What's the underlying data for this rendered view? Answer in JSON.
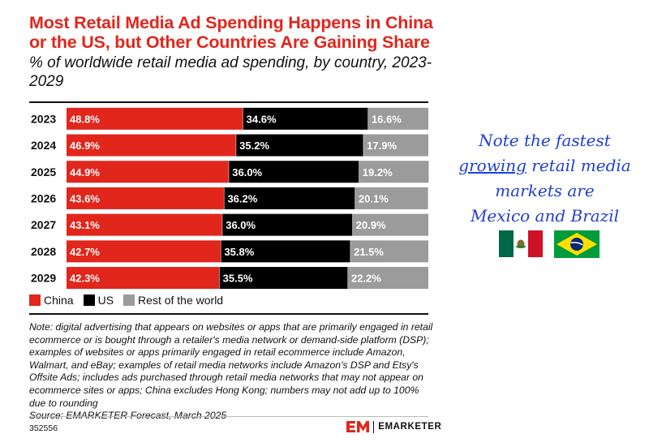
{
  "chart_data": {
    "type": "bar",
    "orientation": "horizontal",
    "stacked": true,
    "title": "Most Retail Media Ad Spending Happens in China or the US, but Other Countries Are Gaining Share",
    "subtitle": "% of worldwide retail media ad spending, by country, 2023-2029",
    "categories": [
      "2023",
      "2024",
      "2025",
      "2026",
      "2027",
      "2028",
      "2029"
    ],
    "series": [
      {
        "name": "China",
        "color": "#e1261c",
        "values": [
          48.8,
          46.9,
          44.9,
          43.6,
          43.1,
          42.7,
          42.3
        ],
        "labels": [
          "48.8%",
          "46.9%",
          "44.9%",
          "43.6%",
          "43.1%",
          "42.7%",
          "42.3%"
        ]
      },
      {
        "name": "US",
        "color": "#000000",
        "values": [
          34.6,
          35.2,
          36.0,
          36.2,
          36.0,
          35.8,
          35.5
        ],
        "labels": [
          "34.6%",
          "35.2%",
          "36.0%",
          "36.2%",
          "36.0%",
          "35.8%",
          "35.5%"
        ]
      },
      {
        "name": "Rest of the world",
        "color": "#9b9b9b",
        "values": [
          16.6,
          17.9,
          19.2,
          20.1,
          20.9,
          21.5,
          22.2
        ],
        "labels": [
          "16.6%",
          "17.9%",
          "19.2%",
          "20.1%",
          "20.9%",
          "21.5%",
          "22.2%"
        ]
      }
    ],
    "xlim": [
      0,
      100
    ],
    "legend_position": "bottom-left"
  },
  "legend": [
    {
      "label": "China",
      "color": "#e1261c"
    },
    {
      "label": "US",
      "color": "#000000"
    },
    {
      "label": "Rest of the world",
      "color": "#9b9b9b"
    }
  ],
  "note": {
    "text": "Note: digital advertising that appears on websites or apps that are primarily engaged in retail ecommerce or is bought through a retailer's media network or demand-side platform (DSP); examples of websites or apps primarily engaged in retail ecommerce include Amazon, Walmart, and eBay; examples of retail media networks include Amazon's DSP and Etsy's Offsite Ads; includes ads purchased through retail media networks that may not appear on ecommerce sites or apps; China excludes Hong Kong; numbers may not add up to 100% due to rounding",
    "source": "Source: EMARKETER Forecast, March 2025"
  },
  "footer": {
    "chart_id": "352556",
    "logo_mark": "EM",
    "brand": "EMARKETER"
  },
  "annotation": {
    "line1": "Note the fastest",
    "line2_underlined": "growing",
    "line2_rest": " retail media",
    "line3": "markets are",
    "line4": "Mexico and Brazil"
  },
  "flags": [
    {
      "name": "Mexico",
      "colors": [
        "#006847",
        "#ffffff",
        "#ce1126"
      ]
    },
    {
      "name": "Brazil",
      "colors": [
        "#009c3b",
        "#ffdf00",
        "#002776"
      ]
    }
  ],
  "colors": {
    "title": "#e1261c",
    "annotation": "#1f3fd6"
  }
}
